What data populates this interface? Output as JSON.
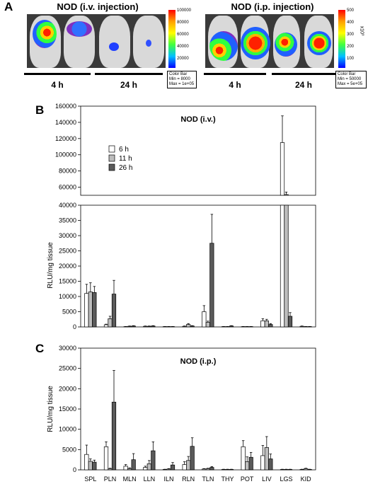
{
  "panel_a": {
    "letter": "A",
    "left_image": {
      "title": "NOD (i.v. injection)",
      "time_labels": [
        "4 h",
        "24 h"
      ],
      "colorbar_ticks": [
        "100000",
        "80000",
        "60000",
        "40000",
        "20000"
      ],
      "colorbar_box": [
        "Color Bar",
        "Min = 8000",
        "Max = 1e+05"
      ]
    },
    "right_image": {
      "title": "NOD (i.p. injection)",
      "time_labels": [
        "4 h",
        "24 h"
      ],
      "colorbar_ticks": [
        "500",
        "400",
        "300",
        "200",
        "100"
      ],
      "colorbar_unit": "x10³",
      "colorbar_box": [
        "Color Bar",
        "Min = 50000",
        "Max = 5e+05"
      ]
    }
  },
  "panel_b": {
    "letter": "B"
  },
  "panel_c": {
    "letter": "C"
  },
  "chart_data": [
    {
      "type": "bar",
      "panel": "B",
      "title": "NOD (i.v.)",
      "ylabel": "RLU/mg tissue",
      "broken_axis": true,
      "ylim_lower": [
        0,
        40000
      ],
      "ylim_upper": [
        50000,
        160000
      ],
      "yticks_lower": [
        "0",
        "5000",
        "10000",
        "15000",
        "20000",
        "25000",
        "30000",
        "35000",
        "40000"
      ],
      "yticks_upper": [
        "60000",
        "80000",
        "100000",
        "120000",
        "140000",
        "160000"
      ],
      "categories": [
        "SPL",
        "PLN",
        "MLN",
        "LLN",
        "ILN",
        "RLN",
        "TLN",
        "THY",
        "POT",
        "LIV",
        "LGS",
        "KID"
      ],
      "series": [
        {
          "name": "6 h",
          "color": "#ffffff",
          "values": [
            11000,
            700,
            100,
            200,
            100,
            200,
            5000,
            100,
            100,
            2000,
            115000,
            200
          ],
          "errors": [
            3000,
            200,
            50,
            100,
            50,
            100,
            2000,
            50,
            50,
            700,
            33000,
            100
          ]
        },
        {
          "name": "11 h",
          "color": "#bdbdbd",
          "values": [
            11500,
            2700,
            200,
            200,
            100,
            800,
            1500,
            100,
            100,
            2000,
            51000,
            100
          ],
          "errors": [
            3000,
            800,
            100,
            100,
            50,
            300,
            400,
            50,
            50,
            500,
            3000,
            50
          ]
        },
        {
          "name": "26 h",
          "color": "#5a5a5a",
          "values": [
            11300,
            10800,
            300,
            300,
            100,
            300,
            27500,
            300,
            100,
            800,
            3500,
            100
          ],
          "errors": [
            2000,
            4500,
            100,
            100,
            50,
            100,
            9500,
            100,
            50,
            300,
            1200,
            50
          ]
        }
      ]
    },
    {
      "type": "bar",
      "panel": "C",
      "title": "NOD (i.p.)",
      "ylabel": "RLU/mg tissue",
      "ylim": [
        0,
        30000
      ],
      "yticks": [
        "0",
        "5000",
        "10000",
        "15000",
        "20000",
        "25000",
        "30000"
      ],
      "categories": [
        "SPL",
        "PLN",
        "MLN",
        "LLN",
        "ILN",
        "RLN",
        "TLN",
        "THY",
        "POT",
        "LIV",
        "LGS",
        "KID"
      ],
      "series": [
        {
          "name": "6 h",
          "color": "#ffffff",
          "values": [
            3800,
            5700,
            900,
            600,
            100,
            1300,
            200,
            100,
            5700,
            3500,
            100,
            100
          ],
          "errors": [
            2300,
            1200,
            400,
            300,
            50,
            700,
            100,
            50,
            1500,
            2500,
            50,
            50
          ]
        },
        {
          "name": "11 h",
          "color": "#bdbdbd",
          "values": [
            2100,
            300,
            300,
            1500,
            200,
            2300,
            300,
            100,
            2000,
            5500,
            100,
            300
          ],
          "errors": [
            600,
            100,
            200,
            800,
            100,
            1000,
            100,
            50,
            1200,
            2700,
            50,
            100
          ]
        },
        {
          "name": "26 h",
          "color": "#5a5a5a",
          "values": [
            1900,
            16700,
            2500,
            4700,
            1200,
            5800,
            600,
            100,
            3100,
            2700,
            100,
            100
          ],
          "errors": [
            500,
            7800,
            1500,
            2200,
            600,
            2100,
            200,
            50,
            1200,
            1200,
            50,
            50
          ]
        }
      ]
    }
  ]
}
